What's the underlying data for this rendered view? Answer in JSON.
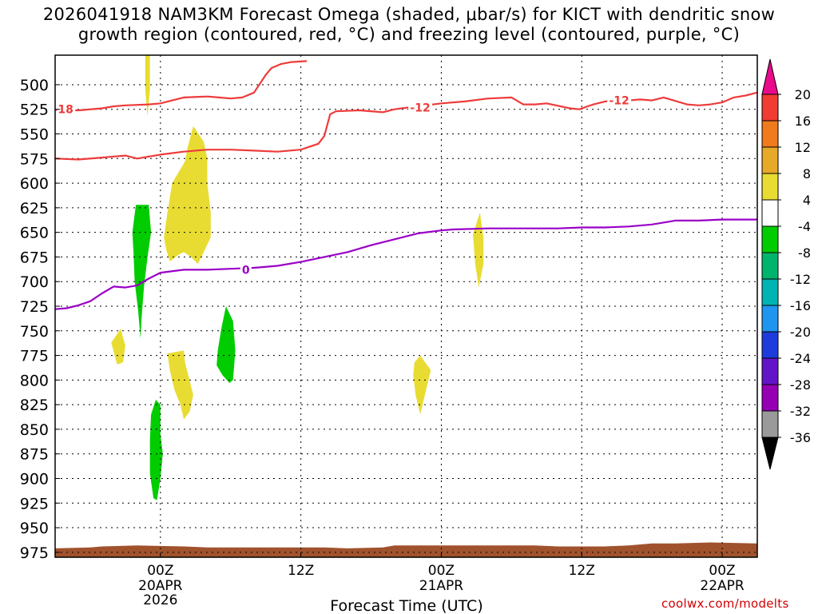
{
  "title": {
    "line1": "2026041918 NAM3KM Forecast Omega (shaded, μbar/s) for KICT with dendritic snow",
    "line2": "growth region (contoured, red, °C) and freezing level (contoured, purple, °C)"
  },
  "credit": "coolwx.com/modelts",
  "colors": {
    "dgz_contour": "#ee3b3b",
    "freezing_contour": "#9a00c8",
    "terrain": "#a0522d",
    "grid": "#000000"
  },
  "chart_data": {
    "type": "heatmap",
    "xlabel": "Forecast Time (UTC)",
    "x_unit": "forecast hour from 2026-04-19 18Z",
    "xlim": [
      -3,
      57
    ],
    "x_ticks": [
      {
        "hour": 6,
        "label": "00Z",
        "sublabels": [
          "20APR",
          "2026"
        ]
      },
      {
        "hour": 18,
        "label": "12Z",
        "sublabels": []
      },
      {
        "hour": 30,
        "label": "00Z",
        "sublabels": [
          "21APR"
        ]
      },
      {
        "hour": 42,
        "label": "12Z",
        "sublabels": []
      },
      {
        "hour": 54,
        "label": "00Z",
        "sublabels": [
          "22APR"
        ]
      }
    ],
    "y_unit": "hPa",
    "ylim": [
      980,
      470
    ],
    "y_ticks": [
      500,
      525,
      550,
      575,
      600,
      625,
      650,
      675,
      700,
      725,
      750,
      775,
      800,
      825,
      850,
      875,
      900,
      925,
      950,
      975
    ],
    "colorbar": {
      "labels": [
        "20",
        "16",
        "12",
        "8",
        "4",
        "-4",
        "-8",
        "-12",
        "-16",
        "-20",
        "-24",
        "-28",
        "-32",
        "-36"
      ],
      "colors": [
        "#ea0a8c",
        "#f03c32",
        "#f07a1e",
        "#e6aa28",
        "#e8dc32",
        "#ffffff",
        "#00cc00",
        "#00b46e",
        "#00b4b4",
        "#1e96f0",
        "#1e3cdc",
        "#6414c8",
        "#9600b4",
        "#9a9a9a",
        "#000000"
      ]
    },
    "contours": [
      {
        "kind": "dgz",
        "label": "-18",
        "label_at": [
          -2.3,
          525
        ],
        "points": [
          [
            -3,
            526
          ],
          [
            -1,
            526
          ],
          [
            1,
            524
          ],
          [
            2,
            522
          ],
          [
            3,
            521
          ],
          [
            5,
            520
          ],
          [
            6,
            519
          ],
          [
            7,
            516
          ],
          [
            8,
            513
          ],
          [
            10,
            512
          ],
          [
            11,
            513
          ],
          [
            12,
            514
          ],
          [
            13,
            513
          ],
          [
            14,
            508
          ],
          [
            15,
            490
          ],
          [
            15.5,
            483
          ],
          [
            16.3,
            479
          ],
          [
            17.2,
            477
          ],
          [
            18.5,
            476
          ]
        ]
      },
      {
        "kind": "dgz",
        "label": "-12",
        "label_at": [
          28.2,
          523
        ],
        "points": [
          [
            -3,
            575
          ],
          [
            -1,
            576
          ],
          [
            1,
            574
          ],
          [
            2,
            573
          ],
          [
            3,
            572
          ],
          [
            4,
            575
          ],
          [
            6,
            571
          ],
          [
            8,
            568
          ],
          [
            10,
            566
          ],
          [
            12,
            566
          ],
          [
            14,
            567
          ],
          [
            16,
            568
          ],
          [
            18,
            566
          ],
          [
            19.5,
            560
          ],
          [
            20,
            552
          ],
          [
            20.5,
            530
          ],
          [
            21,
            527
          ],
          [
            23,
            526
          ],
          [
            25,
            528
          ],
          [
            26,
            525
          ],
          [
            28,
            522
          ],
          [
            30,
            519
          ],
          [
            32,
            517
          ],
          [
            34,
            514
          ],
          [
            36,
            513
          ],
          [
            37,
            520
          ],
          [
            38,
            520
          ],
          [
            39,
            519
          ],
          [
            41,
            524
          ],
          [
            41.8,
            525
          ],
          [
            42.5,
            522
          ],
          [
            43,
            520
          ],
          [
            44,
            517
          ],
          [
            46,
            516
          ],
          [
            47,
            515
          ],
          [
            48,
            516
          ],
          [
            49,
            513
          ],
          [
            51,
            520
          ],
          [
            52,
            521
          ],
          [
            53,
            520
          ],
          [
            54,
            518
          ],
          [
            55,
            513
          ],
          [
            56,
            511
          ],
          [
            57,
            508
          ]
        ]
      },
      {
        "kind": "dgz",
        "label": "-12",
        "label_at": [
          45.2,
          516
        ],
        "points": []
      },
      {
        "kind": "freezing",
        "label": "0",
        "label_at": [
          13.3,
          688
        ],
        "points": [
          [
            -3,
            728
          ],
          [
            -2,
            727
          ],
          [
            -1,
            724
          ],
          [
            0,
            720
          ],
          [
            1,
            712
          ],
          [
            2,
            705
          ],
          [
            3,
            706
          ],
          [
            4,
            704
          ],
          [
            5,
            697
          ],
          [
            6,
            691
          ],
          [
            8,
            688
          ],
          [
            10,
            688
          ],
          [
            12,
            687
          ],
          [
            14,
            686
          ],
          [
            16,
            684
          ],
          [
            18,
            680
          ],
          [
            20,
            675
          ],
          [
            22,
            670
          ],
          [
            24,
            663
          ],
          [
            26,
            657
          ],
          [
            28,
            651
          ],
          [
            30,
            648
          ],
          [
            31,
            647
          ],
          [
            34,
            646
          ],
          [
            38,
            646
          ],
          [
            40,
            646
          ],
          [
            42,
            645
          ],
          [
            44,
            645
          ],
          [
            46,
            644
          ],
          [
            48,
            642
          ],
          [
            50,
            638
          ],
          [
            52,
            638
          ],
          [
            54,
            637
          ],
          [
            57,
            637
          ]
        ]
      }
    ],
    "omega_regions": [
      {
        "class": "+4 to +8",
        "color": "#e8dc32",
        "points": [
          [
            4.7,
            470
          ],
          [
            5.1,
            470
          ],
          [
            5.1,
            505
          ],
          [
            4.9,
            532
          ],
          [
            4.7,
            505
          ]
        ]
      },
      {
        "class": "+4 to +8",
        "color": "#e8dc32",
        "points": [
          [
            8.8,
            542
          ],
          [
            9.7,
            558
          ],
          [
            10,
            575
          ],
          [
            10,
            600
          ],
          [
            10.3,
            630
          ],
          [
            10.3,
            655
          ],
          [
            9.7,
            670
          ],
          [
            9.2,
            682
          ],
          [
            8.6,
            675
          ],
          [
            8.0,
            670
          ],
          [
            7.5,
            673
          ],
          [
            7.0,
            678
          ],
          [
            6.8,
            679
          ],
          [
            6.5,
            668
          ],
          [
            6.3,
            655
          ],
          [
            6.6,
            630
          ],
          [
            7.0,
            600
          ],
          [
            7.5,
            590
          ],
          [
            8.1,
            578
          ],
          [
            8.3,
            565
          ]
        ]
      },
      {
        "class": "+4 to +8",
        "color": "#e8dc32",
        "points": [
          [
            1.8,
            762
          ],
          [
            2.6,
            748
          ],
          [
            3.0,
            765
          ],
          [
            2.8,
            782
          ],
          [
            2.3,
            784
          ]
        ]
      },
      {
        "class": "+4 to +8",
        "color": "#e8dc32",
        "points": [
          [
            6.6,
            773
          ],
          [
            8.0,
            770
          ],
          [
            8.1,
            782
          ],
          [
            8.8,
            815
          ],
          [
            8.5,
            832
          ],
          [
            8.0,
            840
          ],
          [
            7.7,
            825
          ],
          [
            7.2,
            810
          ],
          [
            6.8,
            790
          ]
        ]
      },
      {
        "class": "+4 to +8",
        "color": "#e8dc32",
        "points": [
          [
            28.2,
            775
          ],
          [
            29.1,
            790
          ],
          [
            28.7,
            810
          ],
          [
            28.2,
            835
          ],
          [
            27.8,
            815
          ],
          [
            27.6,
            795
          ],
          [
            27.7,
            782
          ]
        ]
      },
      {
        "class": "+4 to +8",
        "color": "#e8dc32",
        "points": [
          [
            33.3,
            630
          ],
          [
            33.6,
            655
          ],
          [
            33.6,
            682
          ],
          [
            33.2,
            706
          ],
          [
            32.9,
            682
          ],
          [
            32.7,
            652
          ]
        ]
      },
      {
        "class": "-8 to -4",
        "color": "#00cc00",
        "points": [
          [
            3.9,
            622
          ],
          [
            5.0,
            622
          ],
          [
            5.2,
            650
          ],
          [
            4.9,
            675
          ],
          [
            4.6,
            705
          ],
          [
            4.4,
            735
          ],
          [
            4.3,
            758
          ],
          [
            4.1,
            730
          ],
          [
            3.8,
            700
          ],
          [
            3.7,
            672
          ],
          [
            3.6,
            650
          ]
        ]
      },
      {
        "class": "-8 to -4",
        "color": "#00cc00",
        "points": [
          [
            11.6,
            725
          ],
          [
            12.2,
            740
          ],
          [
            12.4,
            770
          ],
          [
            12.2,
            800
          ],
          [
            11.9,
            803
          ],
          [
            11.3,
            795
          ],
          [
            10.8,
            785
          ],
          [
            10.9,
            770
          ],
          [
            11.2,
            748
          ]
        ]
      },
      {
        "class": "-8 to -4",
        "color": "#00cc00",
        "points": [
          [
            5.6,
            820
          ],
          [
            6.0,
            825
          ],
          [
            6.0,
            855
          ],
          [
            6.2,
            875
          ],
          [
            6.0,
            900
          ],
          [
            5.7,
            922
          ],
          [
            5.4,
            920
          ],
          [
            5.1,
            895
          ],
          [
            5.1,
            860
          ],
          [
            5.2,
            835
          ]
        ]
      }
    ],
    "terrain_surface": [
      [
        -3,
        985
      ],
      [
        -3,
        971
      ],
      [
        0,
        970
      ],
      [
        1,
        969
      ],
      [
        4,
        968
      ],
      [
        8,
        969
      ],
      [
        10,
        970
      ],
      [
        20,
        970
      ],
      [
        22,
        971
      ],
      [
        25,
        970
      ],
      [
        26,
        968
      ],
      [
        31,
        968
      ],
      [
        38,
        968
      ],
      [
        40,
        969
      ],
      [
        42,
        969
      ],
      [
        44,
        969
      ],
      [
        46,
        968
      ],
      [
        48,
        966
      ],
      [
        50,
        966
      ],
      [
        53,
        965
      ],
      [
        57,
        966
      ],
      [
        57,
        985
      ]
    ]
  }
}
